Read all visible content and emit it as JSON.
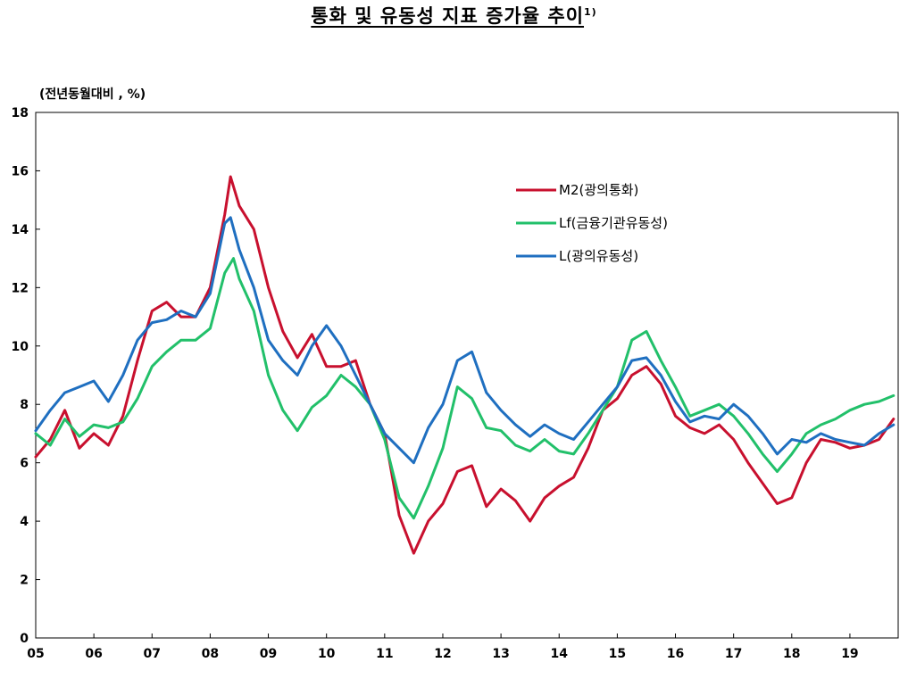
{
  "title": "통화 및 유동성 지표 증가율 추이",
  "title_note": "1)",
  "chart_data": {
    "type": "line",
    "ylabel": "(전년동월대비 , %)",
    "ylim": [
      0,
      18
    ],
    "yticks": [
      0,
      2,
      4,
      6,
      8,
      10,
      12,
      14,
      16,
      18
    ],
    "xlim": [
      2005.0,
      2019.83
    ],
    "xticks": [
      {
        "x": 2005,
        "label": "05"
      },
      {
        "x": 2006,
        "label": "06"
      },
      {
        "x": 2007,
        "label": "07"
      },
      {
        "x": 2008,
        "label": "08"
      },
      {
        "x": 2009,
        "label": "09"
      },
      {
        "x": 2010,
        "label": "10"
      },
      {
        "x": 2011,
        "label": "11"
      },
      {
        "x": 2012,
        "label": "12"
      },
      {
        "x": 2013,
        "label": "13"
      },
      {
        "x": 2014,
        "label": "14"
      },
      {
        "x": 2015,
        "label": "15"
      },
      {
        "x": 2016,
        "label": "16"
      },
      {
        "x": 2017,
        "label": "17"
      },
      {
        "x": 2018,
        "label": "18"
      },
      {
        "x": 2019,
        "label": "19"
      }
    ],
    "grid": false,
    "legend_position": "top-right",
    "series": [
      {
        "name": "M2(광의통화)",
        "color": "#c8102e",
        "points": [
          [
            2005.0,
            6.2
          ],
          [
            2005.25,
            6.8
          ],
          [
            2005.5,
            7.8
          ],
          [
            2005.75,
            6.5
          ],
          [
            2006.0,
            7.0
          ],
          [
            2006.25,
            6.6
          ],
          [
            2006.5,
            7.6
          ],
          [
            2006.75,
            9.5
          ],
          [
            2007.0,
            11.2
          ],
          [
            2007.25,
            11.5
          ],
          [
            2007.5,
            11.0
          ],
          [
            2007.75,
            11.0
          ],
          [
            2008.0,
            12.0
          ],
          [
            2008.25,
            14.5
          ],
          [
            2008.35,
            15.8
          ],
          [
            2008.5,
            14.8
          ],
          [
            2008.75,
            14.0
          ],
          [
            2009.0,
            12.0
          ],
          [
            2009.25,
            10.5
          ],
          [
            2009.5,
            9.6
          ],
          [
            2009.75,
            10.4
          ],
          [
            2010.0,
            9.3
          ],
          [
            2010.25,
            9.3
          ],
          [
            2010.5,
            9.5
          ],
          [
            2010.75,
            8.0
          ],
          [
            2011.0,
            7.0
          ],
          [
            2011.25,
            4.2
          ],
          [
            2011.5,
            2.9
          ],
          [
            2011.75,
            4.0
          ],
          [
            2012.0,
            4.6
          ],
          [
            2012.25,
            5.7
          ],
          [
            2012.5,
            5.9
          ],
          [
            2012.75,
            4.5
          ],
          [
            2013.0,
            5.1
          ],
          [
            2013.25,
            4.7
          ],
          [
            2013.5,
            4.0
          ],
          [
            2013.75,
            4.8
          ],
          [
            2014.0,
            5.2
          ],
          [
            2014.25,
            5.5
          ],
          [
            2014.5,
            6.5
          ],
          [
            2014.75,
            7.8
          ],
          [
            2015.0,
            8.2
          ],
          [
            2015.25,
            9.0
          ],
          [
            2015.5,
            9.3
          ],
          [
            2015.75,
            8.7
          ],
          [
            2016.0,
            7.6
          ],
          [
            2016.25,
            7.2
          ],
          [
            2016.5,
            7.0
          ],
          [
            2016.75,
            7.3
          ],
          [
            2017.0,
            6.8
          ],
          [
            2017.25,
            6.0
          ],
          [
            2017.5,
            5.3
          ],
          [
            2017.75,
            4.6
          ],
          [
            2018.0,
            4.8
          ],
          [
            2018.25,
            6.0
          ],
          [
            2018.5,
            6.8
          ],
          [
            2018.75,
            6.7
          ],
          [
            2019.0,
            6.5
          ],
          [
            2019.25,
            6.6
          ],
          [
            2019.5,
            6.8
          ],
          [
            2019.75,
            7.5
          ]
        ]
      },
      {
        "name": "Lf(금융기관유동성)",
        "color": "#22c06a",
        "points": [
          [
            2005.0,
            7.0
          ],
          [
            2005.25,
            6.6
          ],
          [
            2005.5,
            7.5
          ],
          [
            2005.75,
            6.9
          ],
          [
            2006.0,
            7.3
          ],
          [
            2006.25,
            7.2
          ],
          [
            2006.5,
            7.4
          ],
          [
            2006.75,
            8.2
          ],
          [
            2007.0,
            9.3
          ],
          [
            2007.25,
            9.8
          ],
          [
            2007.5,
            10.2
          ],
          [
            2007.75,
            10.2
          ],
          [
            2008.0,
            10.6
          ],
          [
            2008.25,
            12.5
          ],
          [
            2008.4,
            13.0
          ],
          [
            2008.5,
            12.3
          ],
          [
            2008.75,
            11.2
          ],
          [
            2009.0,
            9.0
          ],
          [
            2009.25,
            7.8
          ],
          [
            2009.5,
            7.1
          ],
          [
            2009.75,
            7.9
          ],
          [
            2010.0,
            8.3
          ],
          [
            2010.25,
            9.0
          ],
          [
            2010.5,
            8.6
          ],
          [
            2010.75,
            8.0
          ],
          [
            2011.0,
            6.8
          ],
          [
            2011.25,
            4.8
          ],
          [
            2011.5,
            4.1
          ],
          [
            2011.75,
            5.2
          ],
          [
            2012.0,
            6.5
          ],
          [
            2012.25,
            8.6
          ],
          [
            2012.5,
            8.2
          ],
          [
            2012.75,
            7.2
          ],
          [
            2013.0,
            7.1
          ],
          [
            2013.25,
            6.6
          ],
          [
            2013.5,
            6.4
          ],
          [
            2013.75,
            6.8
          ],
          [
            2014.0,
            6.4
          ],
          [
            2014.25,
            6.3
          ],
          [
            2014.5,
            7.0
          ],
          [
            2014.75,
            7.8
          ],
          [
            2015.0,
            8.6
          ],
          [
            2015.25,
            10.2
          ],
          [
            2015.5,
            10.5
          ],
          [
            2015.75,
            9.5
          ],
          [
            2016.0,
            8.6
          ],
          [
            2016.25,
            7.6
          ],
          [
            2016.5,
            7.8
          ],
          [
            2016.75,
            8.0
          ],
          [
            2017.0,
            7.6
          ],
          [
            2017.25,
            7.0
          ],
          [
            2017.5,
            6.3
          ],
          [
            2017.75,
            5.7
          ],
          [
            2018.0,
            6.3
          ],
          [
            2018.25,
            7.0
          ],
          [
            2018.5,
            7.3
          ],
          [
            2018.75,
            7.5
          ],
          [
            2019.0,
            7.8
          ],
          [
            2019.25,
            8.0
          ],
          [
            2019.5,
            8.1
          ],
          [
            2019.75,
            8.3
          ]
        ]
      },
      {
        "name": "L(광의유동성)",
        "color": "#1f6fc0",
        "points": [
          [
            2005.0,
            7.1
          ],
          [
            2005.25,
            7.8
          ],
          [
            2005.5,
            8.4
          ],
          [
            2005.75,
            8.6
          ],
          [
            2006.0,
            8.8
          ],
          [
            2006.25,
            8.1
          ],
          [
            2006.5,
            9.0
          ],
          [
            2006.75,
            10.2
          ],
          [
            2007.0,
            10.8
          ],
          [
            2007.25,
            10.9
          ],
          [
            2007.5,
            11.2
          ],
          [
            2007.75,
            11.0
          ],
          [
            2008.0,
            11.8
          ],
          [
            2008.25,
            14.2
          ],
          [
            2008.35,
            14.4
          ],
          [
            2008.5,
            13.3
          ],
          [
            2008.75,
            12.0
          ],
          [
            2009.0,
            10.2
          ],
          [
            2009.25,
            9.5
          ],
          [
            2009.5,
            9.0
          ],
          [
            2009.75,
            10.0
          ],
          [
            2010.0,
            10.7
          ],
          [
            2010.25,
            10.0
          ],
          [
            2010.5,
            9.0
          ],
          [
            2010.75,
            8.0
          ],
          [
            2011.0,
            7.0
          ],
          [
            2011.25,
            6.5
          ],
          [
            2011.5,
            6.0
          ],
          [
            2011.75,
            7.2
          ],
          [
            2012.0,
            8.0
          ],
          [
            2012.25,
            9.5
          ],
          [
            2012.5,
            9.8
          ],
          [
            2012.75,
            8.4
          ],
          [
            2013.0,
            7.8
          ],
          [
            2013.25,
            7.3
          ],
          [
            2013.5,
            6.9
          ],
          [
            2013.75,
            7.3
          ],
          [
            2014.0,
            7.0
          ],
          [
            2014.25,
            6.8
          ],
          [
            2014.5,
            7.4
          ],
          [
            2014.75,
            8.0
          ],
          [
            2015.0,
            8.6
          ],
          [
            2015.25,
            9.5
          ],
          [
            2015.5,
            9.6
          ],
          [
            2015.75,
            9.0
          ],
          [
            2016.0,
            8.1
          ],
          [
            2016.25,
            7.4
          ],
          [
            2016.5,
            7.6
          ],
          [
            2016.75,
            7.5
          ],
          [
            2017.0,
            8.0
          ],
          [
            2017.25,
            7.6
          ],
          [
            2017.5,
            7.0
          ],
          [
            2017.75,
            6.3
          ],
          [
            2018.0,
            6.8
          ],
          [
            2018.25,
            6.7
          ],
          [
            2018.5,
            7.0
          ],
          [
            2018.75,
            6.8
          ],
          [
            2019.0,
            6.7
          ],
          [
            2019.25,
            6.6
          ],
          [
            2019.5,
            7.0
          ],
          [
            2019.75,
            7.3
          ]
        ]
      }
    ]
  }
}
